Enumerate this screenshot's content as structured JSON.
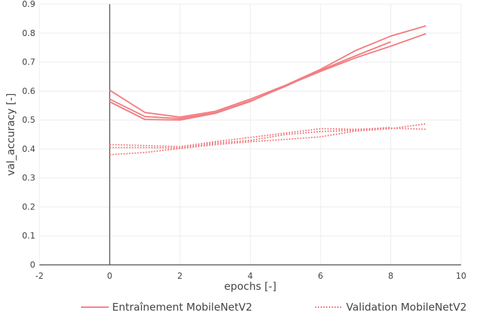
{
  "chart_data": {
    "type": "line",
    "xlabel": "epochs [-]",
    "ylabel": "val_accuracy [-]",
    "xlim": [
      -2,
      10
    ],
    "ylim": [
      0,
      0.9
    ],
    "x_ticks": [
      "-2",
      "0",
      "2",
      "4",
      "6",
      "8",
      "10"
    ],
    "y_ticks": [
      "0",
      "0.1",
      "0.2",
      "0.3",
      "0.4",
      "0.5",
      "0.6",
      "0.7",
      "0.8",
      "0.9"
    ],
    "grid": true,
    "legend_position": "bottom",
    "color": "#f27e82",
    "legend": [
      {
        "label": "Entraînement MobileNetV2",
        "dash": "solid"
      },
      {
        "label": "Validation MobileNetV2",
        "dash": "dot"
      }
    ],
    "series": [
      {
        "group": "Entraînement MobileNetV2",
        "dash": "solid",
        "x": [
          0,
          1,
          2,
          3,
          4,
          5,
          6,
          7,
          8,
          9
        ],
        "y": [
          0.603,
          0.526,
          0.51,
          0.53,
          0.572,
          0.62,
          0.675,
          0.74,
          0.79,
          0.825
        ]
      },
      {
        "group": "Entraînement MobileNetV2",
        "dash": "solid",
        "x": [
          0,
          1,
          2,
          3,
          4,
          5,
          6,
          7,
          8
        ],
        "y": [
          0.572,
          0.512,
          0.505,
          0.525,
          0.566,
          0.616,
          0.672,
          0.722,
          0.77
        ]
      },
      {
        "group": "Entraînement MobileNetV2",
        "dash": "solid",
        "x": [
          0,
          1,
          2,
          3,
          4,
          5,
          6,
          7,
          8,
          9
        ],
        "y": [
          0.563,
          0.502,
          0.5,
          0.523,
          0.564,
          0.618,
          0.668,
          0.715,
          0.755,
          0.798
        ]
      },
      {
        "group": "Validation MobileNetV2",
        "dash": "dot",
        "x": [
          0,
          1,
          2,
          3,
          4,
          5,
          6,
          7,
          8,
          9
        ],
        "y": [
          0.415,
          0.412,
          0.408,
          0.425,
          0.44,
          0.455,
          0.47,
          0.468,
          0.472,
          0.468
        ]
      },
      {
        "group": "Validation MobileNetV2",
        "dash": "dot",
        "x": [
          0,
          1,
          2,
          3,
          4,
          5,
          6,
          7,
          8
        ],
        "y": [
          0.405,
          0.405,
          0.403,
          0.42,
          0.43,
          0.45,
          0.46,
          0.465,
          0.475
        ]
      },
      {
        "group": "Validation MobileNetV2",
        "dash": "dot",
        "x": [
          0,
          1,
          2,
          3,
          4,
          5,
          6,
          7,
          8,
          9
        ],
        "y": [
          0.38,
          0.388,
          0.402,
          0.415,
          0.425,
          0.433,
          0.442,
          0.462,
          0.47,
          0.487
        ]
      }
    ]
  }
}
